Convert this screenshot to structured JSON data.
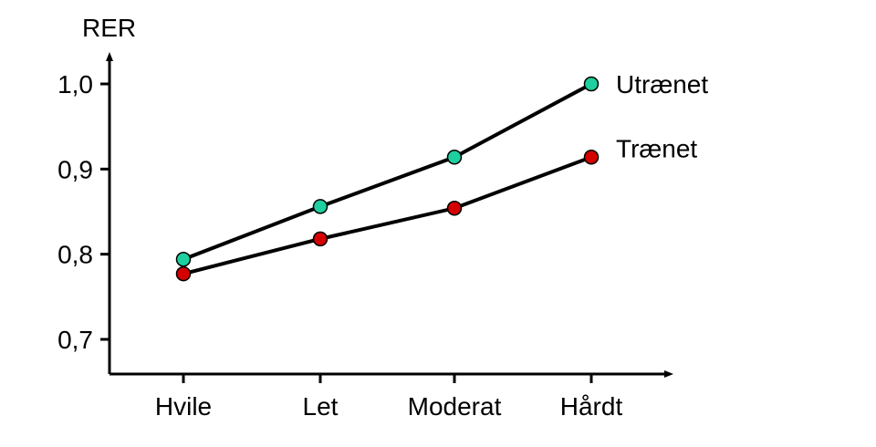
{
  "chart_data": {
    "type": "line",
    "ylabel": "RER",
    "xlabel": "",
    "categories": [
      "Hvile",
      "Let",
      "Moderat",
      "Hårdt"
    ],
    "yticks": [
      "0,7",
      "0,8",
      "0,9",
      "1,0"
    ],
    "ytick_values": [
      0.7,
      0.8,
      0.9,
      1.0
    ],
    "ylim": [
      0.66,
      1.04
    ],
    "grid": false,
    "legend": "labels at line ends (right)",
    "series": [
      {
        "name": "Utrænet",
        "values": [
          0.794,
          0.856,
          0.914,
          1.0
        ],
        "color": "#1ecf9f"
      },
      {
        "name": "Trænet",
        "values": [
          0.777,
          0.818,
          0.854,
          0.914
        ],
        "color": "#d40000"
      }
    ]
  }
}
